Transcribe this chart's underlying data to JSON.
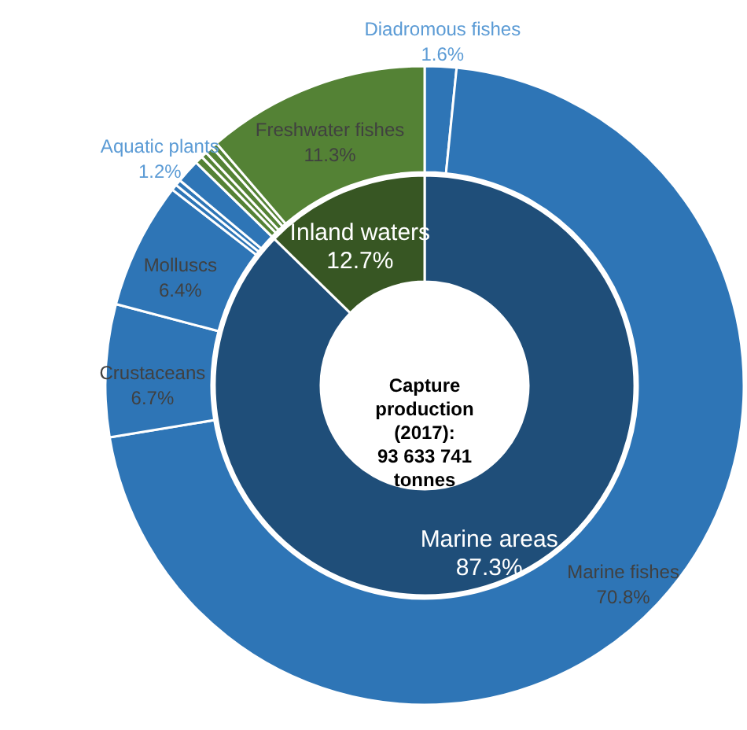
{
  "chart_data": [
    {
      "type": "donut",
      "title": "Capture production (2017): 93 633 741 tonnes",
      "categories": [
        "Marine areas",
        "Inland waters"
      ],
      "values": [
        87.3,
        12.7
      ],
      "colors": [
        "#1f4e79",
        "#375623"
      ],
      "value_labels": [
        "87.3%",
        "12.7%"
      ]
    },
    {
      "type": "donut",
      "categories": [
        "Diadromous fishes",
        "Marine fishes",
        "Crustaceans",
        "Molluscs",
        null,
        null,
        "Aquatic plants",
        null,
        null,
        null,
        null,
        "Freshwater fishes"
      ],
      "values": [
        1.6,
        70.8,
        6.7,
        6.4,
        0.3,
        0.3,
        1.2,
        0.4,
        0.3,
        0.4,
        0.3,
        11.3
      ],
      "colors": [
        "#2e75b6",
        "#2e75b6",
        "#2e75b6",
        "#2e75b6",
        "#2e75b6",
        "#2e75b6",
        "#2e75b6",
        "#548235",
        "#548235",
        "#548235",
        "#548235",
        "#548235"
      ],
      "value_labels": [
        "1.6%",
        "70.8%",
        "6.7%",
        "6.4%",
        null,
        null,
        "1.2%",
        null,
        null,
        null,
        null,
        "11.3%"
      ]
    }
  ]
}
